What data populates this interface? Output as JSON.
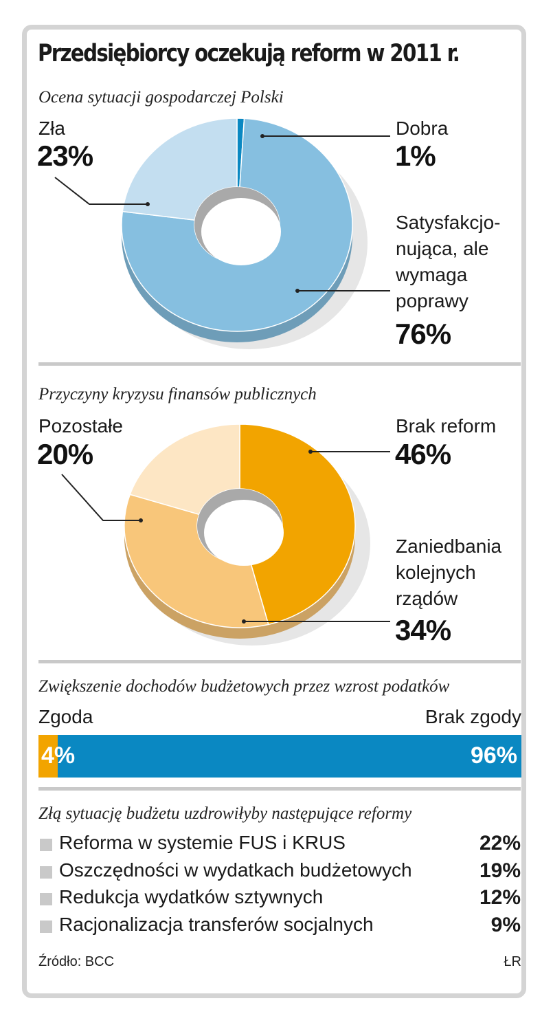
{
  "title": "Przedsiębiorcy oczekują reform w 2011 r.",
  "chart_data": [
    {
      "type": "pie",
      "title": "Ocena sytuacji gospodarczej Polski",
      "slices": [
        {
          "label": "Dobra",
          "value": 1,
          "color": "#0a88c2"
        },
        {
          "label": "Satysfakcjonująca, ale wymaga poprawy",
          "value": 76,
          "color": "#86bfe0"
        },
        {
          "label": "Zła",
          "value": 23,
          "color": "#c3def0"
        }
      ],
      "label_lines": {
        "zla": "Zła",
        "dobra": "Dobra",
        "satysf": [
          "Satysfakcjo-",
          "nująca, ale",
          "wymaga",
          "poprawy"
        ]
      },
      "pct_text": {
        "zla": "23%",
        "dobra": "1%",
        "satysf": "76%"
      }
    },
    {
      "type": "pie",
      "title": "Przyczyny kryzysu finansów publicznych",
      "slices": [
        {
          "label": "Brak reform",
          "value": 46,
          "color": "#f2a400"
        },
        {
          "label": "Zaniedbania kolejnych rządów",
          "value": 34,
          "color": "#f8c67a"
        },
        {
          "label": "Pozostałe",
          "value": 20,
          "color": "#fde6c4"
        }
      ],
      "label_lines": {
        "pozostale": "Pozostałe",
        "brak": "Brak reform",
        "zaniedbania": [
          "Zaniedbania",
          "kolejnych",
          "rządów"
        ]
      },
      "pct_text": {
        "pozostale": "20%",
        "brak": "46%",
        "zaniedbania": "34%"
      }
    },
    {
      "type": "bar",
      "title": "Zwiększenie dochodów budżetowych przez wzrost podatków",
      "categories": [
        "Zgoda",
        "Brak zgody"
      ],
      "values": [
        4,
        96
      ],
      "value_labels": [
        "4%",
        "96%"
      ],
      "colors": [
        "#f2a400",
        "#0a88c2"
      ]
    },
    {
      "type": "table",
      "title": "Złą sytuację budżetu uzdrowiłyby następujące reformy",
      "rows": [
        {
          "label": "Reforma w systemie FUS i KRUS",
          "value": "22%"
        },
        {
          "label": "Oszczędności w wydatkach budżetowych",
          "value": "19%"
        },
        {
          "label": "Redukcja wydatków sztywnych",
          "value": "12%"
        },
        {
          "label": "Racjonalizacja transferów socjalnych",
          "value": "9%"
        }
      ]
    }
  ],
  "footer": {
    "source": "Źródło: BCC",
    "author": "ŁR"
  }
}
